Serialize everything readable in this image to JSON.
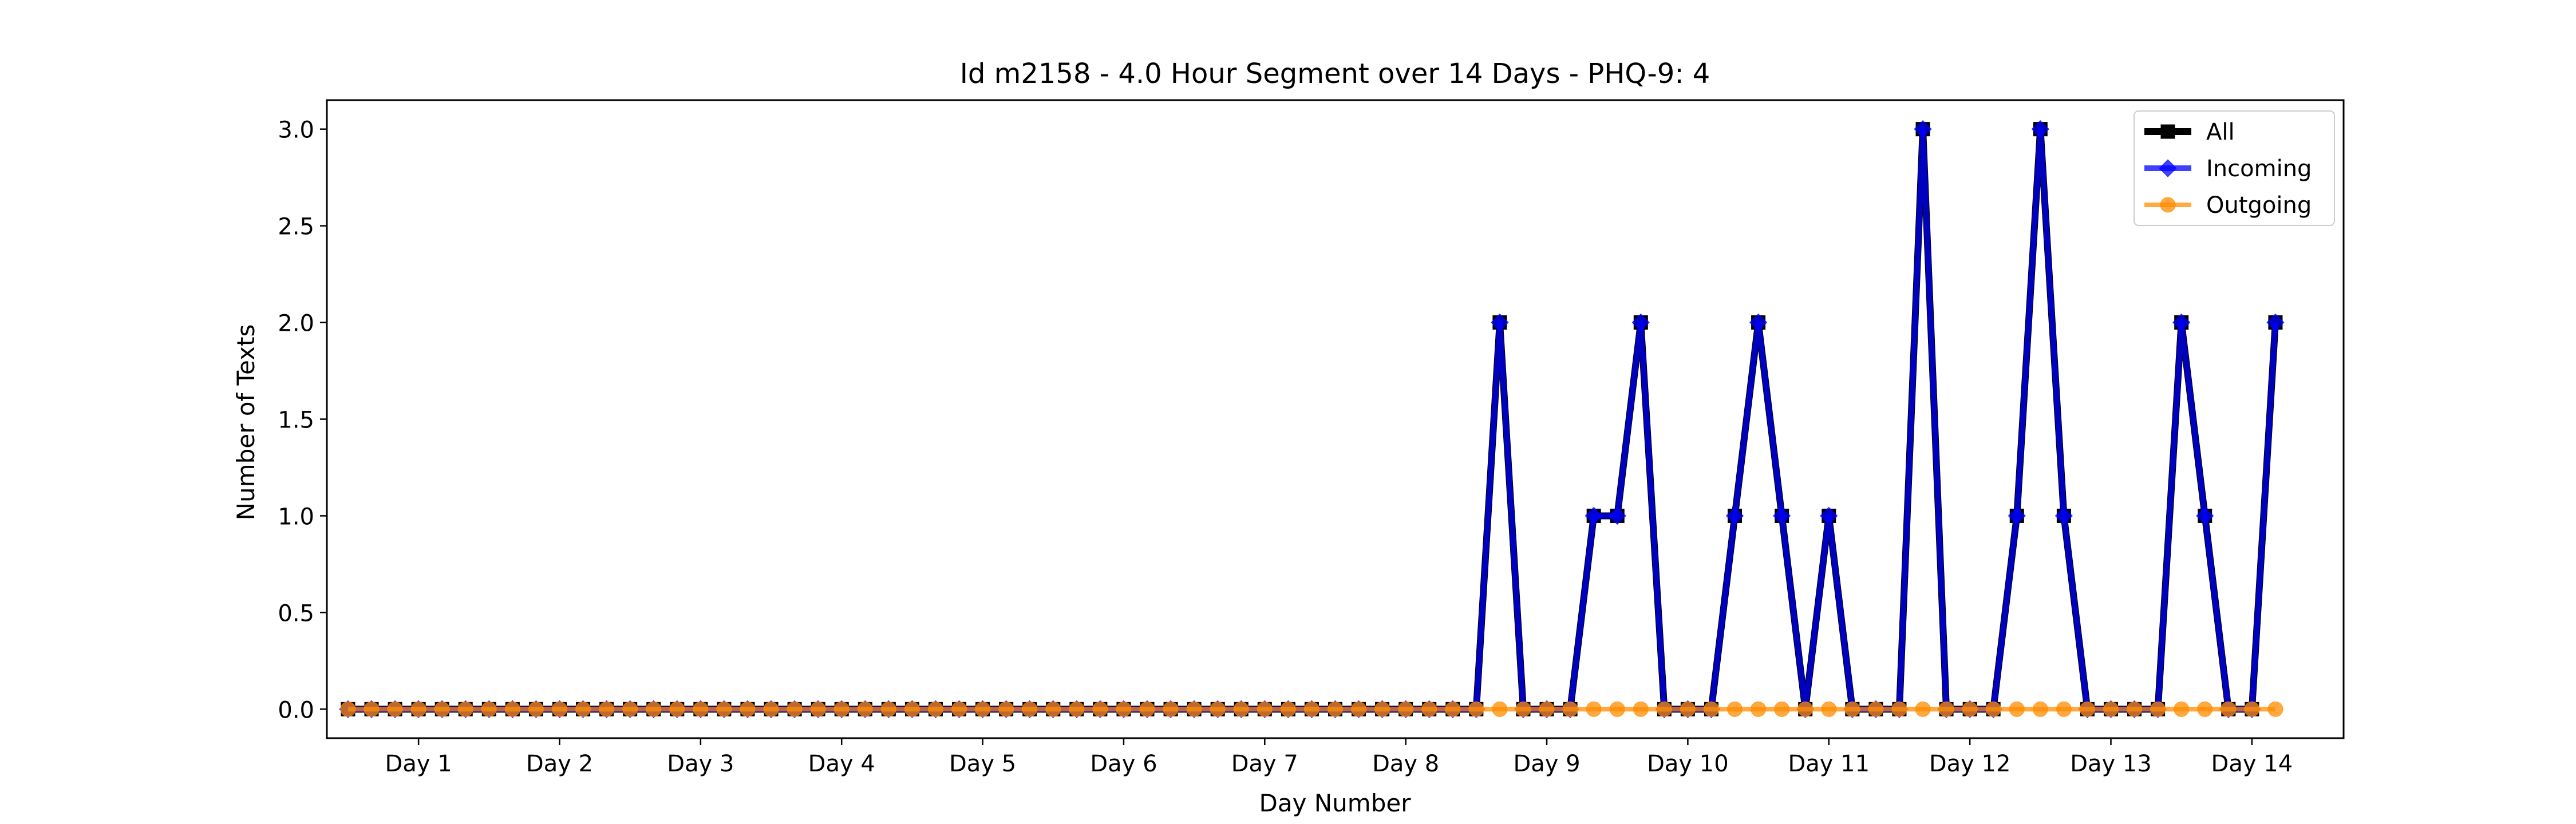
{
  "chart_data": {
    "type": "line",
    "title": "Id m2158 - 4.0 Hour Segment over 14 Days - PHQ-9: 4",
    "xlabel": "Day Number",
    "ylabel": "Number of Texts",
    "xlim": [
      -0.325,
      6.825
    ],
    "ylim": [
      -0.15,
      3.15
    ],
    "grid": false,
    "legend_position": "top-right",
    "x_ticks": {
      "labels": [
        "Day 1",
        "Day 2",
        "Day 3",
        "Day 4",
        "Day 5",
        "Day 6",
        "Day 7",
        "Day 8",
        "Day 9",
        "Day 10",
        "Day 11",
        "Day 12",
        "Day 13",
        "Day 14"
      ]
    },
    "y_ticks": [
      {
        "value": 0.0,
        "label": "0.0"
      },
      {
        "value": 0.5,
        "label": "0.5"
      },
      {
        "value": 1.0,
        "label": "1.0"
      },
      {
        "value": 1.5,
        "label": "1.5"
      },
      {
        "value": 2.0,
        "label": "2.0"
      },
      {
        "value": 2.5,
        "label": "2.5"
      },
      {
        "value": 3.0,
        "label": "3.0"
      }
    ],
    "series": [
      {
        "name": "All",
        "color": "#000000",
        "marker": "square",
        "values": [
          0,
          0,
          0,
          0,
          0,
          0,
          0,
          0,
          0,
          0,
          0,
          0,
          0,
          0,
          0,
          0,
          0,
          0,
          0,
          0,
          0,
          0,
          0,
          0,
          0,
          0,
          0,
          0,
          0,
          0,
          0,
          0,
          0,
          0,
          0,
          0,
          0,
          0,
          0,
          0,
          0,
          0,
          0,
          0,
          0,
          0,
          0,
          0,
          0,
          2,
          0,
          0,
          0,
          1,
          1,
          2,
          0,
          0,
          0,
          1,
          2,
          1,
          0,
          1,
          0,
          0,
          0,
          3,
          0,
          0,
          0,
          1,
          3,
          1,
          0,
          0,
          0,
          0,
          2,
          1,
          0,
          0,
          2
        ]
      },
      {
        "name": "Incoming",
        "color": "#0000ff",
        "marker": "diamond",
        "values": [
          0,
          0,
          0,
          0,
          0,
          0,
          0,
          0,
          0,
          0,
          0,
          0,
          0,
          0,
          0,
          0,
          0,
          0,
          0,
          0,
          0,
          0,
          0,
          0,
          0,
          0,
          0,
          0,
          0,
          0,
          0,
          0,
          0,
          0,
          0,
          0,
          0,
          0,
          0,
          0,
          0,
          0,
          0,
          0,
          0,
          0,
          0,
          0,
          0,
          2,
          0,
          0,
          0,
          1,
          1,
          2,
          0,
          0,
          0,
          1,
          2,
          1,
          0,
          1,
          0,
          0,
          0,
          3,
          0,
          0,
          0,
          1,
          3,
          1,
          0,
          0,
          0,
          0,
          2,
          1,
          0,
          0,
          2
        ]
      },
      {
        "name": "Outgoing",
        "color": "#ff8c00",
        "marker": "circle",
        "values": [
          0,
          0,
          0,
          0,
          0,
          0,
          0,
          0,
          0,
          0,
          0,
          0,
          0,
          0,
          0,
          0,
          0,
          0,
          0,
          0,
          0,
          0,
          0,
          0,
          0,
          0,
          0,
          0,
          0,
          0,
          0,
          0,
          0,
          0,
          0,
          0,
          0,
          0,
          0,
          0,
          0,
          0,
          0,
          0,
          0,
          0,
          0,
          0,
          0,
          0,
          0,
          0,
          0,
          0,
          0,
          0,
          0,
          0,
          0,
          0,
          0,
          0,
          0,
          0,
          0,
          0,
          0,
          0,
          0,
          0,
          0,
          0,
          0,
          0,
          0,
          0,
          0,
          0,
          0,
          0,
          0,
          0,
          0
        ]
      }
    ]
  }
}
